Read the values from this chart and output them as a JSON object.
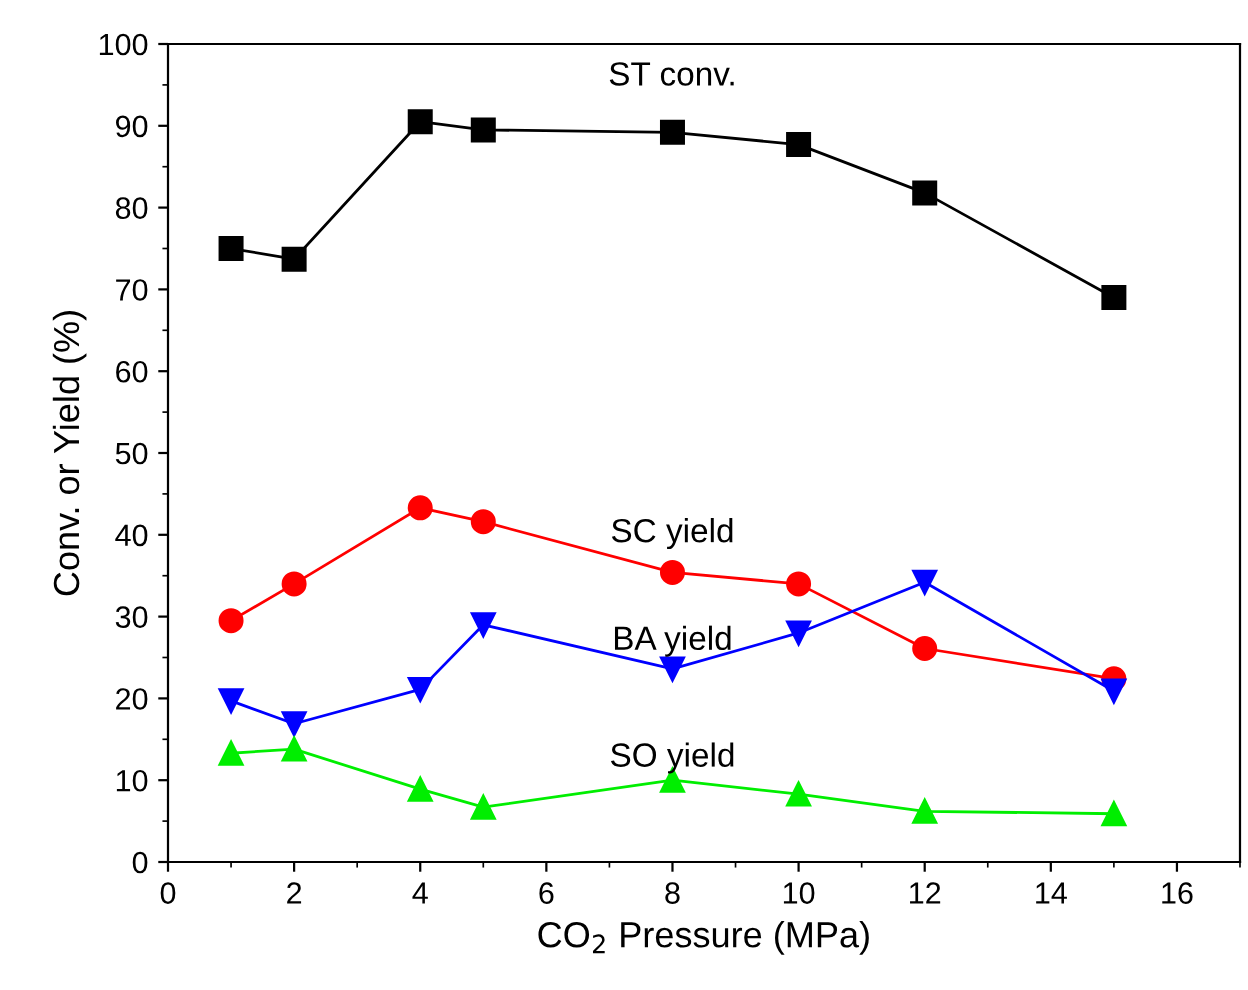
{
  "chart_data": {
    "type": "line",
    "xlabel": "CO$_{2}$ Pressure (MPa)",
    "ylabel": "Conv. or Yield (%)",
    "x": [
      1,
      2,
      4,
      5,
      8,
      10,
      12,
      15
    ],
    "series": [
      {
        "name": "ST conv.",
        "color": "#000000",
        "marker": "square",
        "values": [
          75,
          73.7,
          90.5,
          89.5,
          89.2,
          87.7,
          81.8,
          69
        ]
      },
      {
        "name": "SC yield",
        "color": "#ff0000",
        "marker": "circle",
        "values": [
          29.5,
          34,
          43.3,
          41.6,
          35.4,
          34,
          26.1,
          22.4
        ]
      },
      {
        "name": "BA yield",
        "color": "#0000ff",
        "marker": "triangle_down",
        "values": [
          19.7,
          16.9,
          21.1,
          29,
          23.6,
          28,
          34.2,
          20.9
        ]
      },
      {
        "name": "SO yield",
        "color": "#00ee00",
        "marker": "triangle",
        "values": [
          13.3,
          13.8,
          8.9,
          6.7,
          10,
          8.3,
          6.2,
          5.9
        ]
      }
    ],
    "xlim": [
      0,
      17
    ],
    "xticks": [
      0,
      2,
      4,
      6,
      8,
      10,
      12,
      14,
      16
    ],
    "ylim": [
      0,
      100
    ],
    "yticks": [
      0,
      10,
      20,
      30,
      40,
      50,
      60,
      70,
      80,
      90,
      100
    ],
    "grid": false,
    "legend": false,
    "line_style": "solid"
  }
}
